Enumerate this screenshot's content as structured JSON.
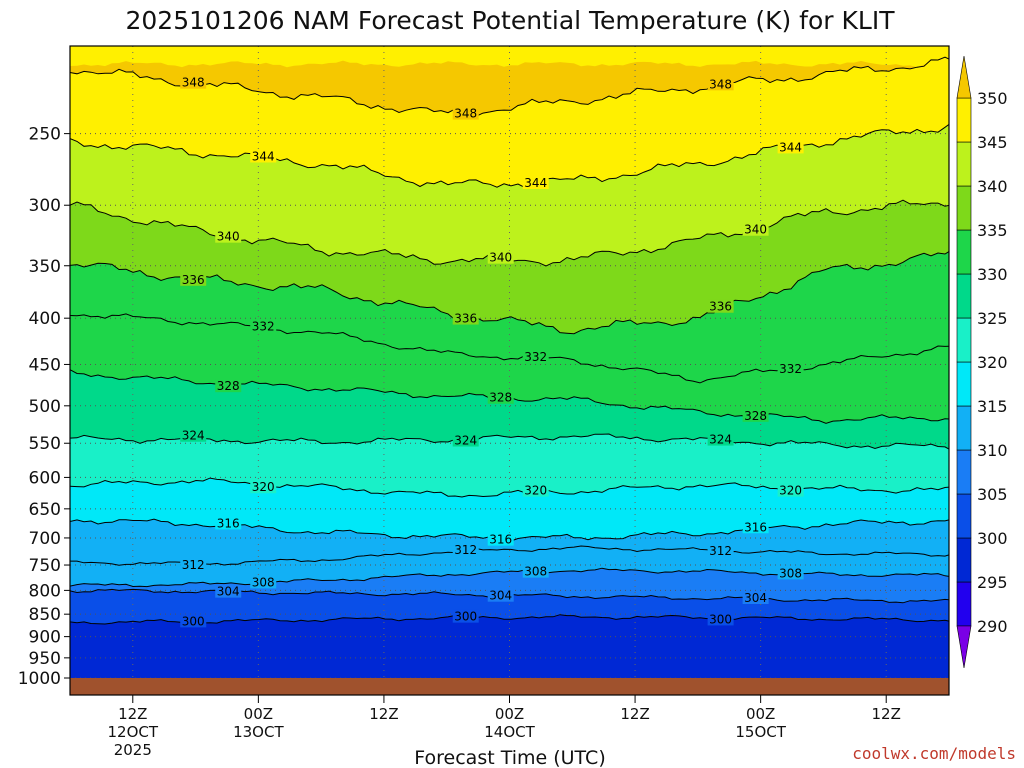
{
  "chart_data": {
    "type": "heatmap",
    "title": "2025101206 NAM Forecast Potential Temperature (K) for KLIT",
    "xlabel": "Forecast Time (UTC)",
    "ylabel": "",
    "credit": "coolwx.com/models",
    "y_axis": {
      "scale": "pressure (hPa), inverted",
      "range": [
        1000,
        200
      ],
      "ticks": [
        "250",
        "300",
        "350",
        "400",
        "450",
        "500",
        "550",
        "600",
        "650",
        "700",
        "750",
        "800",
        "850",
        "900",
        "950",
        "1000"
      ]
    },
    "x_axis": {
      "range_hours": [
        0,
        84
      ],
      "ticks": [
        {
          "label": "12Z",
          "sub1": "12OCT",
          "sub2": "2025",
          "hour": 6
        },
        {
          "label": "00Z",
          "sub1": "13OCT",
          "sub2": "",
          "hour": 18
        },
        {
          "label": "12Z",
          "sub1": "",
          "sub2": "",
          "hour": 30
        },
        {
          "label": "00Z",
          "sub1": "14OCT",
          "sub2": "",
          "hour": 42
        },
        {
          "label": "12Z",
          "sub1": "",
          "sub2": "",
          "hour": 54
        },
        {
          "label": "00Z",
          "sub1": "15OCT",
          "sub2": "",
          "hour": 66
        },
        {
          "label": "12Z",
          "sub1": "",
          "sub2": "",
          "hour": 78
        }
      ]
    },
    "colorbar": {
      "levels": [
        "290",
        "295",
        "300",
        "305",
        "310",
        "315",
        "320",
        "325",
        "330",
        "335",
        "340",
        "345",
        "350"
      ],
      "colors": [
        "#7a00e6",
        "#2200ee",
        "#0028d4",
        "#0a4fe8",
        "#1a7df5",
        "#12b0f5",
        "#00e8f8",
        "#19f0c8",
        "#00d98a",
        "#1ed64a",
        "#7ed91a",
        "#bdf21c",
        "#fff000",
        "#f5c800"
      ]
    },
    "isotherms": [
      {
        "value": 300,
        "pressures": [
          868,
          866,
          862,
          858,
          856,
          857,
          860,
          863
        ],
        "label": "300"
      },
      {
        "value": 304,
        "pressures": [
          800,
          802,
          806,
          808,
          812,
          816,
          820,
          822
        ],
        "label": "304"
      },
      {
        "value": 308,
        "pressures": [
          790,
          788,
          780,
          768,
          760,
          762,
          768,
          770
        ],
        "label": "308"
      },
      {
        "value": 312,
        "pressures": [
          745,
          748,
          740,
          725,
          718,
          722,
          728,
          730
        ],
        "label": "312"
      },
      {
        "value": 316,
        "pressures": [
          668,
          675,
          690,
          698,
          700,
          692,
          676,
          670
        ],
        "label": "316"
      },
      {
        "value": 320,
        "pressures": [
          612,
          605,
          615,
          628,
          622,
          612,
          618,
          620
        ],
        "label": "320"
      },
      {
        "value": 324,
        "pressures": [
          544,
          545,
          548,
          545,
          540,
          545,
          552,
          555
        ],
        "label": "324"
      },
      {
        "value": 328,
        "pressures": [
          460,
          470,
          478,
          488,
          492,
          508,
          518,
          515
        ],
        "label": "328"
      },
      {
        "value": 332,
        "pressures": [
          395,
          404,
          415,
          438,
          445,
          468,
          450,
          430
        ],
        "label": "332"
      },
      {
        "value": 336,
        "pressures": [
          348,
          362,
          372,
          395,
          412,
          400,
          355,
          340
        ],
        "label": "336"
      },
      {
        "value": 340,
        "pressures": [
          300,
          320,
          336,
          345,
          345,
          328,
          305,
          298
        ],
        "label": "340"
      },
      {
        "value": 344,
        "pressures": [
          255,
          262,
          270,
          285,
          282,
          270,
          255,
          245
        ],
        "label": "344"
      },
      {
        "value": 348,
        "pressures": [
          212,
          220,
          228,
          238,
          230,
          222,
          215,
          208
        ],
        "label": "348"
      }
    ]
  }
}
